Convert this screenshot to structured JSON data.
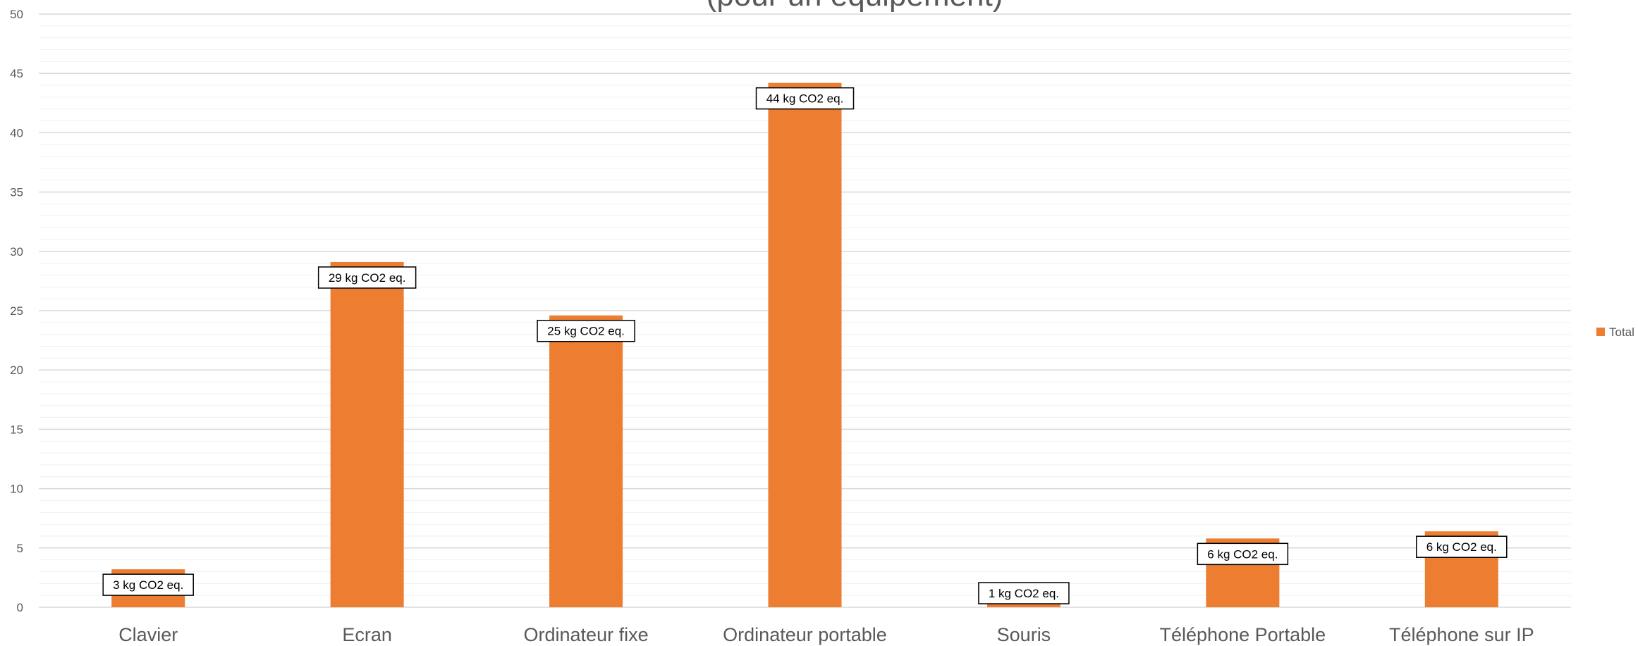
{
  "chart_data": {
    "type": "bar",
    "title": "(pour un équipement)",
    "categories": [
      "Clavier",
      "Ecran",
      "Ordinateur fixe",
      "Ordinateur portable",
      "Souris",
      "Téléphone Portable",
      "Téléphone sur IP"
    ],
    "series": [
      {
        "name": "Total",
        "values": [
          3.2,
          29.1,
          24.6,
          44.2,
          0.4,
          5.8,
          6.4
        ]
      }
    ],
    "data_labels": [
      "3 kg CO2 eq.",
      "29 kg CO2 eq.",
      "25 kg CO2 eq.",
      "44 kg CO2 eq.",
      "1 kg CO2 eq.",
      "6 kg CO2 eq.",
      "6 kg CO2 eq."
    ],
    "y_ticks": [
      "0",
      "5",
      "10",
      "15",
      "20",
      "25",
      "30",
      "35",
      "40",
      "45",
      "50"
    ],
    "ylim": [
      0,
      50
    ],
    "y_major_step": 5,
    "y_minor_step": 1,
    "grid": true,
    "legend_position": "right",
    "colors": {
      "bar": "#ed7d31",
      "grid_major": "#d9d9d9",
      "grid_minor": "#f0f0f0",
      "text": "#595959"
    }
  }
}
